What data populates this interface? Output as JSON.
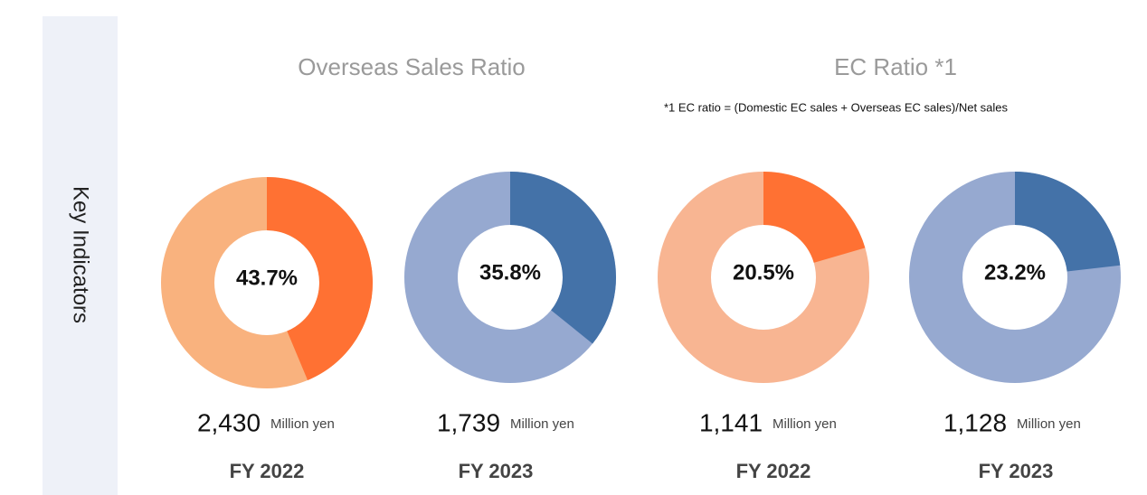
{
  "side_label": "Key Indicators",
  "groups": [
    {
      "title": "Overseas Sales Ratio"
    },
    {
      "title": "EC Ratio *1",
      "footnote": "*1 EC ratio = (Domestic EC sales + Overseas EC sales)/Net sales"
    }
  ],
  "chart_data": [
    {
      "type": "donut",
      "values": [
        43.7
      ],
      "value_labels": [
        "43.7%"
      ],
      "color": "#ff7133",
      "track_color": "#f9b27e",
      "amount": "2,430",
      "unit": "Million yen",
      "category": "FY 2022"
    },
    {
      "type": "donut",
      "values": [
        35.8
      ],
      "value_labels": [
        "35.8%"
      ],
      "color": "#4472a8",
      "track_color": "#96a9d0",
      "amount": "1,739",
      "unit": "Million yen",
      "category": "FY 2023"
    },
    {
      "type": "donut",
      "values": [
        20.5
      ],
      "value_labels": [
        "20.5%"
      ],
      "color": "#ff7133",
      "track_color": "#f8b592",
      "amount": "1,141",
      "unit": "Million yen",
      "category": "FY 2022"
    },
    {
      "type": "donut",
      "values": [
        23.2
      ],
      "value_labels": [
        "23.2%"
      ],
      "color": "#4472a8",
      "track_color": "#96a9d0",
      "amount": "1,128",
      "unit": "Million yen",
      "category": "FY 2023"
    }
  ]
}
